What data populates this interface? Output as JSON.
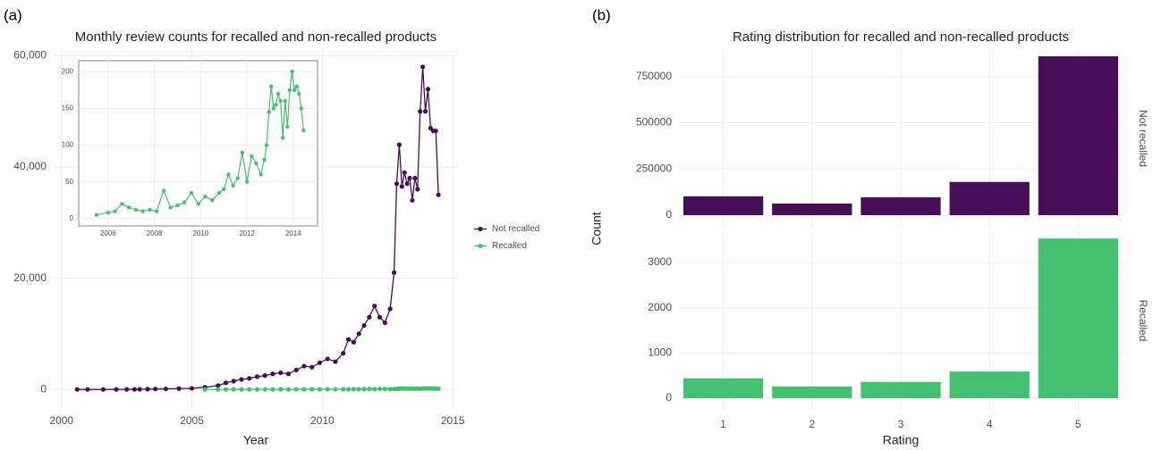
{
  "chart_data": [
    {
      "type": "line",
      "panel_label": "(a)",
      "title": "Monthly review counts for recalled and non-recalled products",
      "x_label": "Year",
      "xlim": [
        1999.7,
        2015.2
      ],
      "ylim": [
        -3500,
        61200
      ],
      "xticks": [
        2000,
        2005,
        2010,
        2015
      ],
      "yticks": [
        0,
        {
          "value": 20000,
          "label": "20,000"
        },
        {
          "value": 40000,
          "label": "40,000"
        },
        {
          "value": 60000,
          "label": "60,000"
        }
      ],
      "grid": true,
      "legend": "right",
      "x": [
        2000.6,
        2001.0,
        2001.6,
        2002.1,
        2002.5,
        2002.8,
        2003.0,
        2003.3,
        2003.6,
        2004.0,
        2004.5,
        2005.0,
        2005.5,
        2006.0,
        2006.3,
        2006.6,
        2006.9,
        2007.2,
        2007.5,
        2007.8,
        2008.1,
        2008.4,
        2008.7,
        2009.0,
        2009.3,
        2009.6,
        2009.9,
        2010.2,
        2010.5,
        2010.8,
        2011.0,
        2011.2,
        2011.4,
        2011.6,
        2011.8,
        2012.0,
        2012.2,
        2012.4,
        2012.6,
        2012.75,
        2012.85,
        2012.95,
        2013.05,
        2013.15,
        2013.25,
        2013.35,
        2013.45,
        2013.55,
        2013.65,
        2013.75,
        2013.85,
        2013.95,
        2014.05,
        2014.15,
        2014.25,
        2014.35,
        2014.45
      ],
      "series": [
        {
          "name": "Not recalled",
          "color": "#470d56",
          "values": [
            0,
            0,
            0,
            0,
            10,
            20,
            30,
            50,
            80,
            100,
            150,
            200,
            400,
            700,
            1200,
            1500,
            1800,
            2000,
            2300,
            2500,
            2800,
            3000,
            2800,
            3500,
            4200,
            4000,
            4800,
            5500,
            5000,
            6500,
            9000,
            8500,
            10000,
            11500,
            13000,
            15000,
            13000,
            12000,
            14500,
            21000,
            37000,
            44000,
            36500,
            39000,
            37000,
            38000,
            34000,
            38000,
            36000,
            50000,
            58000,
            50000,
            54000,
            47000,
            46500,
            46500,
            35000
          ]
        },
        {
          "name": "Recalled",
          "color": "#45bf70",
          "values": [
            null,
            null,
            null,
            null,
            null,
            null,
            null,
            null,
            null,
            null,
            null,
            null,
            5,
            8,
            10,
            20,
            15,
            12,
            10,
            12,
            10,
            38,
            15,
            18,
            22,
            35,
            20,
            30,
            25,
            35,
            40,
            60,
            45,
            55,
            90,
            50,
            85,
            75,
            60,
            80,
            100,
            145,
            180,
            150,
            155,
            170,
            160,
            110,
            160,
            125,
            175,
            200,
            175,
            180,
            170,
            150,
            120
          ]
        }
      ]
    },
    {
      "type": "line",
      "xlim": [
        2004.73,
        2015.05
      ],
      "ylim": [
        -10,
        215
      ],
      "xticks": [
        2006,
        2008,
        2010,
        2012,
        2014
      ],
      "yticks": [
        0,
        50,
        100,
        150,
        200
      ],
      "grid": true,
      "x": [
        2005.5,
        2006.0,
        2006.3,
        2006.6,
        2006.9,
        2007.2,
        2007.5,
        2007.8,
        2008.1,
        2008.4,
        2008.7,
        2009.0,
        2009.3,
        2009.6,
        2009.9,
        2010.2,
        2010.5,
        2010.8,
        2011.0,
        2011.2,
        2011.4,
        2011.6,
        2011.8,
        2012.0,
        2012.2,
        2012.4,
        2012.6,
        2012.75,
        2012.85,
        2012.95,
        2013.05,
        2013.15,
        2013.25,
        2013.35,
        2013.45,
        2013.55,
        2013.65,
        2013.75,
        2013.85,
        2013.95,
        2014.05,
        2014.15,
        2014.25,
        2014.35,
        2014.45
      ],
      "series": [
        {
          "color": "#45bf70",
          "values": [
            5,
            8,
            10,
            20,
            15,
            12,
            10,
            12,
            10,
            38,
            15,
            18,
            22,
            35,
            20,
            30,
            25,
            35,
            40,
            60,
            45,
            55,
            90,
            50,
            85,
            75,
            60,
            80,
            100,
            145,
            180,
            150,
            155,
            170,
            160,
            110,
            160,
            125,
            175,
            200,
            175,
            180,
            170,
            150,
            120
          ]
        }
      ]
    },
    {
      "type": "bar",
      "panel_label": "(b)",
      "title": "Rating distribution for recalled and non-recalled products",
      "x_label": "Rating",
      "y_label": "Count",
      "grid": true,
      "categories": [
        "1",
        "2",
        "3",
        "4",
        "5"
      ],
      "facets": [
        {
          "label": "Not recalled",
          "color": "#470d56",
          "values": [
            102000,
            63000,
            97000,
            180000,
            860000
          ],
          "ylim": [
            -67700,
            899000
          ],
          "yticks": [
            0,
            250000,
            500000,
            750000
          ]
        },
        {
          "label": "Recalled",
          "color": "#45bf70",
          "values": [
            440,
            260,
            360,
            590,
            3530
          ],
          "ylim": [
            -237,
            3671
          ],
          "yticks": [
            0,
            1000,
            2000,
            3000
          ]
        }
      ]
    }
  ]
}
